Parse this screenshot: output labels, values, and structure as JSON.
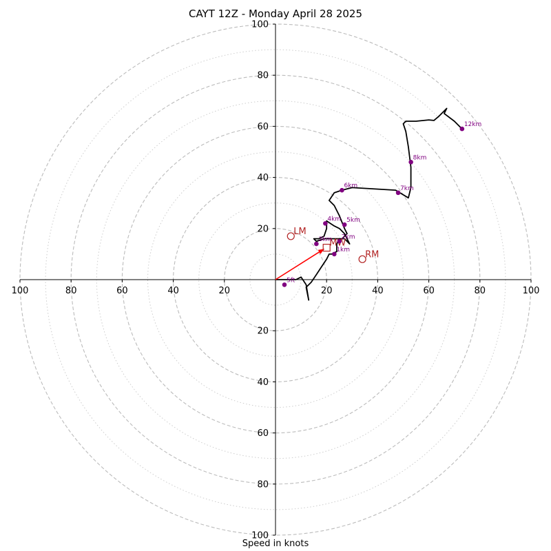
{
  "title": "CAYT 12Z - Monday April 28 2025",
  "xlabel": "Speed in knots",
  "chart_data": {
    "type": "scatter",
    "subtype": "hodograph",
    "title": "CAYT 12Z - Monday April 28 2025",
    "xlabel": "Speed in knots",
    "axis_range": [
      -100,
      100
    ],
    "x_ticks": [
      -100,
      -80,
      -60,
      -40,
      -20,
      20,
      40,
      60,
      80,
      100
    ],
    "y_ticks": [
      -100,
      -80,
      -60,
      -40,
      -20,
      20,
      40,
      60,
      80,
      100
    ],
    "tick_label_text": {
      "-100": "100",
      "-80": "80",
      "-60": "60",
      "-40": "40",
      "-20": "20",
      "20": "20",
      "40": "40",
      "60": "60",
      "80": "80",
      "100": "100"
    },
    "ring_major": [
      20,
      40,
      60,
      80,
      100
    ],
    "ring_minor": [
      10,
      30,
      50,
      70,
      90
    ],
    "grid": true,
    "colors": {
      "trace": "#000000",
      "height_markers": "#800080",
      "motion": "#b22222",
      "shear_vector": "#ff0000",
      "grid": "#bbbbbb"
    },
    "hodograph_trace": [
      [
        0,
        0
      ],
      [
        4,
        0
      ],
      [
        8,
        0
      ],
      [
        10,
        1
      ],
      [
        12,
        -2
      ],
      [
        13,
        -8
      ],
      [
        12,
        -3
      ],
      [
        14,
        -1
      ],
      [
        16,
        2
      ],
      [
        18,
        5
      ],
      [
        20,
        8
      ],
      [
        21,
        10
      ],
      [
        22,
        10
      ],
      [
        24,
        11
      ],
      [
        24,
        14
      ],
      [
        25,
        16
      ],
      [
        27,
        16
      ],
      [
        29,
        14
      ],
      [
        27,
        18
      ],
      [
        25,
        20
      ],
      [
        23,
        21
      ],
      [
        20,
        23
      ],
      [
        20,
        20
      ],
      [
        19,
        17
      ],
      [
        17,
        16
      ],
      [
        15,
        16
      ],
      [
        16,
        15
      ],
      [
        19,
        16
      ],
      [
        21,
        16
      ],
      [
        23,
        16
      ],
      [
        26,
        16
      ],
      [
        28,
        18
      ],
      [
        27,
        20
      ],
      [
        25,
        25
      ],
      [
        23,
        29
      ],
      [
        21,
        31
      ],
      [
        23,
        34
      ],
      [
        26,
        35
      ],
      [
        30,
        36
      ],
      [
        47,
        35
      ],
      [
        52,
        32
      ],
      [
        53,
        36
      ],
      [
        53,
        44
      ],
      [
        52,
        52
      ],
      [
        51,
        58
      ],
      [
        50,
        61
      ],
      [
        51,
        62
      ],
      [
        55,
        62
      ],
      [
        60,
        62.5
      ],
      [
        62,
        62.3
      ],
      [
        64,
        64
      ],
      [
        66,
        66
      ],
      [
        67,
        67
      ],
      [
        66,
        65
      ],
      [
        70,
        62
      ],
      [
        73,
        59
      ]
    ],
    "height_markers": [
      {
        "label": "5ft",
        "x": 3.5,
        "y": -2
      },
      {
        "label": "1km",
        "x": 23,
        "y": 10
      },
      {
        "label": "2km",
        "x": 25,
        "y": 15
      },
      {
        "label": "3km",
        "x": 16,
        "y": 14
      },
      {
        "label": "4km",
        "x": 19.5,
        "y": 22
      },
      {
        "label": "5km",
        "x": 27,
        "y": 21.5
      },
      {
        "label": "6km",
        "x": 26,
        "y": 35
      },
      {
        "label": "7km",
        "x": 48,
        "y": 34
      },
      {
        "label": "8km",
        "x": 53,
        "y": 46
      },
      {
        "label": "12km",
        "x": 73,
        "y": 59
      }
    ],
    "storm_motion": [
      {
        "label": "LM",
        "x": 6,
        "y": 17,
        "shape": "circle"
      },
      {
        "label": "MW",
        "x": 20,
        "y": 12.5,
        "shape": "square"
      },
      {
        "label": "RM",
        "x": 34,
        "y": 8,
        "shape": "circle"
      }
    ],
    "shear_vector": {
      "from": [
        0,
        0
      ],
      "to": [
        19,
        12
      ]
    }
  }
}
